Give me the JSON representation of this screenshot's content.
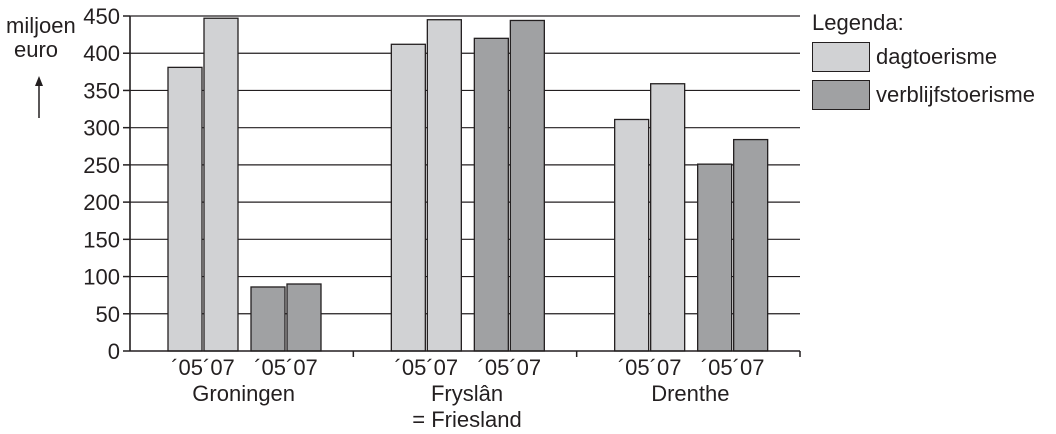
{
  "chart_data": {
    "type": "bar",
    "ylabel": [
      "miljoen",
      "euro"
    ],
    "ylim": [
      0,
      450
    ],
    "yticks": [
      0,
      50,
      100,
      150,
      200,
      250,
      300,
      350,
      400,
      450
    ],
    "grid": true,
    "legend_position": "top-right",
    "legend_title": "Legenda:",
    "year_labels": [
      "´05",
      "´07"
    ],
    "categories": [
      {
        "name": "Groningen",
        "subname": ""
      },
      {
        "name": "Fryslân",
        "subname": "= Friesland"
      },
      {
        "name": "Drenthe",
        "subname": ""
      }
    ],
    "series": [
      {
        "name": "dagtoerisme",
        "color": "#d1d2d4",
        "values": [
          [
            381,
            447
          ],
          [
            412,
            445
          ],
          [
            311,
            359
          ]
        ]
      },
      {
        "name": "verblijfstoerisme",
        "color": "#a0a1a3",
        "values": [
          [
            86,
            90
          ],
          [
            420,
            444
          ],
          [
            251,
            284
          ]
        ]
      }
    ]
  }
}
